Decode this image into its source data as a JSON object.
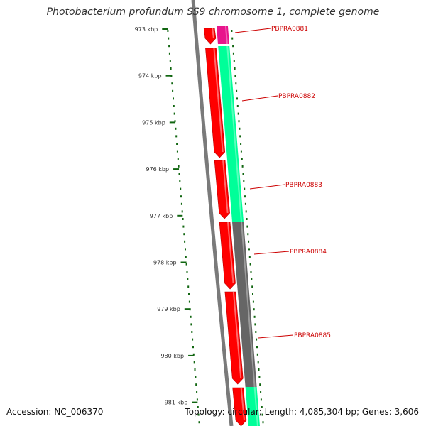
{
  "title": "Photobacterium profundum SS9 chromosome 1, complete genome",
  "footer": {
    "accession": "Accession: NC_006370",
    "stats": "Topology: circular; Length: 4,085,304 bp; Genes: 3,606"
  },
  "scale": {
    "ticks": [
      "973 kbp",
      "974 kbp",
      "975 kbp",
      "976 kbp",
      "977 kbp",
      "978 kbp",
      "979 kbp",
      "980 kbp",
      "981 kbp"
    ]
  },
  "gene_labels": [
    "PBPRA0881",
    "PBPRA0882",
    "PBPRA0883",
    "PBPRA0884",
    "PBPRA0885"
  ],
  "colors": {
    "cds": "#ff0000",
    "cds_dark": "#bb0000",
    "orf_magenta": "#e8158c",
    "cog_green": "#00ff99",
    "cog_gray": "#666666",
    "backbone": "#7a7a7a",
    "gc_dots": "#116611",
    "label_red": "#cc0000"
  }
}
